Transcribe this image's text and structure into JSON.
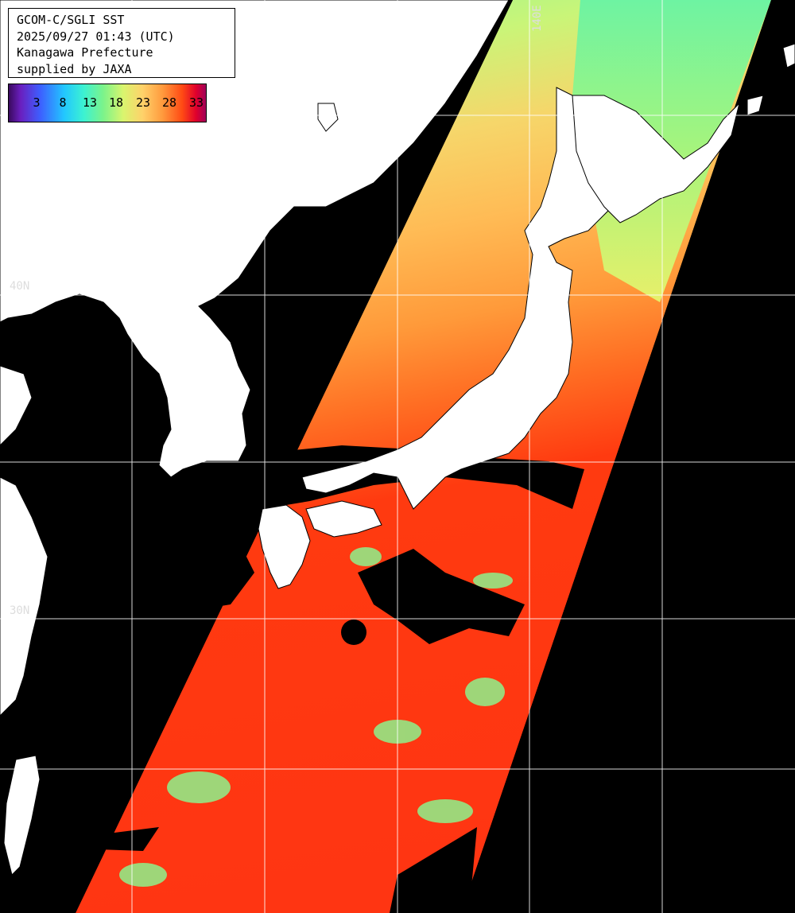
{
  "info": {
    "line1": "GCOM-C/SGLI SST",
    "line2": "2025/09/27 01:43 (UTC)",
    "line3": "Kanagawa Prefecture",
    "line4": "supplied by JAXA"
  },
  "legend": {
    "ticks": [
      "3",
      "8",
      "13",
      "18",
      "23",
      "28",
      "33"
    ]
  },
  "grid_labels": {
    "lat_40": "40N",
    "lat_30": "30N",
    "lon_140": "140E"
  },
  "colors": {
    "land": "#ffffff",
    "no_data": "#000000",
    "grid": "#ffffff",
    "sst_cold": "#7cf0a0",
    "sst_mid": "#ffb050",
    "sst_warm": "#ff3a10"
  }
}
